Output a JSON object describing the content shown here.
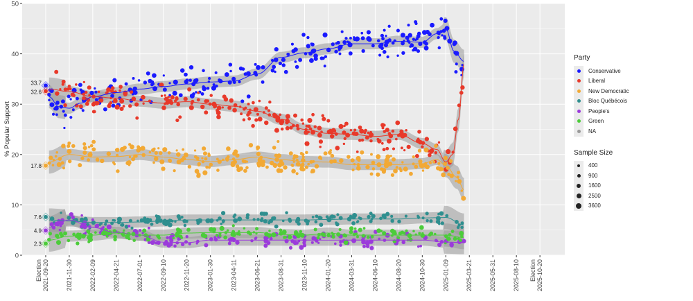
{
  "chart_data": {
    "type": "scatter",
    "title": "",
    "xlabel": "",
    "ylabel": "% Popular Support",
    "ylim": [
      0,
      50
    ],
    "yticks": [
      "0",
      "10",
      "20",
      "30",
      "40",
      "50"
    ],
    "x_unit": "days since 2021-09-20",
    "xlim_days": [
      -71,
      1566
    ],
    "xticks": [
      {
        "day": 0,
        "label": "Election\n2021-09-20"
      },
      {
        "day": 71,
        "label": "2021-11-30"
      },
      {
        "day": 142,
        "label": "2022-02-09"
      },
      {
        "day": 213,
        "label": "2022-04-21"
      },
      {
        "day": 284,
        "label": "2022-07-01"
      },
      {
        "day": 355,
        "label": "2022-09-10"
      },
      {
        "day": 426,
        "label": "2022-11-20"
      },
      {
        "day": 497,
        "label": "2023-01-30"
      },
      {
        "day": 568,
        "label": "2023-04-11"
      },
      {
        "day": 639,
        "label": "2023-06-21"
      },
      {
        "day": 710,
        "label": "2023-08-31"
      },
      {
        "day": 781,
        "label": "2023-11-10"
      },
      {
        "day": 852,
        "label": "2024-01-20"
      },
      {
        "day": 923,
        "label": "2024-03-31"
      },
      {
        "day": 994,
        "label": "2024-06-10"
      },
      {
        "day": 1065,
        "label": "2024-08-20"
      },
      {
        "day": 1136,
        "label": "2024-10-30"
      },
      {
        "day": 1207,
        "label": "2025-01-09"
      },
      {
        "day": 1278,
        "label": "2025-03-21"
      },
      {
        "day": 1349,
        "label": "2025-05-31"
      },
      {
        "day": 1420,
        "label": "2025-08-10"
      },
      {
        "day": 1491,
        "label": "Election\n2025-10-20"
      }
    ],
    "grid": true,
    "legend_position": "right",
    "legend_party_title": "Party",
    "legend_size_title": "Sample Size",
    "sample_sizes": [
      "400",
      "900",
      "1600",
      "2500",
      "3600"
    ],
    "series": [
      {
        "name": "Conservative",
        "color": "#1a1aff",
        "election_result": 33.7,
        "election_label": "33.7",
        "trend": [
          [
            10,
            31.5
          ],
          [
            40,
            29.5
          ],
          [
            71,
            29.2
          ],
          [
            105,
            30.2
          ],
          [
            142,
            31.5
          ],
          [
            213,
            32.3
          ],
          [
            284,
            33
          ],
          [
            355,
            33.5
          ],
          [
            426,
            34
          ],
          [
            497,
            34.4
          ],
          [
            568,
            34.6
          ],
          [
            639,
            36
          ],
          [
            710,
            39.3
          ],
          [
            781,
            40.2
          ],
          [
            852,
            41
          ],
          [
            923,
            42
          ],
          [
            994,
            42
          ],
          [
            1065,
            42.5
          ],
          [
            1136,
            42.3
          ],
          [
            1180,
            44
          ],
          [
            1207,
            45
          ],
          [
            1232,
            40.5
          ],
          [
            1262,
            38.5
          ]
        ]
      },
      {
        "name": "Liberal",
        "color": "#e8392a",
        "election_result": 32.6,
        "election_label": "32.6",
        "trend": [
          [
            10,
            33
          ],
          [
            71,
            32.5
          ],
          [
            142,
            31.5
          ],
          [
            213,
            31.2
          ],
          [
            284,
            30.6
          ],
          [
            355,
            30.2
          ],
          [
            426,
            30.5
          ],
          [
            497,
            30
          ],
          [
            568,
            29.6
          ],
          [
            639,
            28.6
          ],
          [
            710,
            27
          ],
          [
            781,
            25
          ],
          [
            852,
            24.2
          ],
          [
            923,
            24
          ],
          [
            994,
            23.6
          ],
          [
            1065,
            24
          ],
          [
            1136,
            22.2
          ],
          [
            1180,
            21
          ],
          [
            1207,
            18.5
          ],
          [
            1228,
            20
          ],
          [
            1245,
            27
          ],
          [
            1262,
            38
          ]
        ]
      },
      {
        "name": "New Democratic",
        "color": "#f2a935",
        "election_result": 17.8,
        "election_label": "17.8",
        "trend": [
          [
            10,
            18.5
          ],
          [
            71,
            20
          ],
          [
            142,
            19.5
          ],
          [
            213,
            19.6
          ],
          [
            284,
            20
          ],
          [
            355,
            19.5
          ],
          [
            426,
            19
          ],
          [
            497,
            18.6
          ],
          [
            568,
            19
          ],
          [
            639,
            19.5
          ],
          [
            710,
            19
          ],
          [
            781,
            18.6
          ],
          [
            852,
            18.5
          ],
          [
            923,
            18
          ],
          [
            994,
            18
          ],
          [
            1065,
            18
          ],
          [
            1136,
            18.2
          ],
          [
            1180,
            19
          ],
          [
            1207,
            17.8
          ],
          [
            1240,
            15.5
          ],
          [
            1262,
            13
          ]
        ]
      },
      {
        "name": "Bloc Québécois",
        "color": "#2f8f8f",
        "election_result": 7.6,
        "election_label": "7.6",
        "trend": [
          [
            10,
            7
          ],
          [
            71,
            6.8
          ],
          [
            142,
            6.5
          ],
          [
            213,
            6.5
          ],
          [
            284,
            6.6
          ],
          [
            355,
            6.8
          ],
          [
            426,
            7
          ],
          [
            497,
            7
          ],
          [
            568,
            7
          ],
          [
            639,
            7
          ],
          [
            710,
            7
          ],
          [
            781,
            7
          ],
          [
            852,
            7.1
          ],
          [
            923,
            7.2
          ],
          [
            994,
            7.2
          ],
          [
            1065,
            7.2
          ],
          [
            1136,
            7.4
          ],
          [
            1207,
            7.5
          ],
          [
            1262,
            6
          ]
        ]
      },
      {
        "name": "People's",
        "color": "#9b3bdb",
        "election_result": 4.9,
        "election_label": "4.9",
        "trend": [
          [
            10,
            5.5
          ],
          [
            71,
            7
          ],
          [
            142,
            5.5
          ],
          [
            213,
            4.5
          ],
          [
            284,
            4
          ],
          [
            355,
            2.6
          ],
          [
            426,
            2.5
          ],
          [
            497,
            3
          ],
          [
            568,
            3
          ],
          [
            639,
            3
          ],
          [
            710,
            3
          ],
          [
            781,
            3
          ],
          [
            852,
            3
          ],
          [
            923,
            3
          ],
          [
            994,
            3
          ],
          [
            1065,
            3
          ],
          [
            1136,
            3
          ],
          [
            1207,
            2.6
          ],
          [
            1262,
            2.5
          ]
        ]
      },
      {
        "name": "Green",
        "color": "#4ccc3a",
        "election_result": 2.3,
        "election_label": "2.3",
        "trend": [
          [
            10,
            3
          ],
          [
            71,
            3.8
          ],
          [
            142,
            4
          ],
          [
            213,
            4.4
          ],
          [
            284,
            4
          ],
          [
            355,
            4
          ],
          [
            426,
            4.4
          ],
          [
            497,
            4.5
          ],
          [
            568,
            4.5
          ],
          [
            639,
            4.5
          ],
          [
            710,
            4.1
          ],
          [
            781,
            4
          ],
          [
            852,
            4.4
          ],
          [
            923,
            4
          ],
          [
            994,
            4
          ],
          [
            1065,
            4
          ],
          [
            1136,
            4
          ],
          [
            1207,
            4
          ],
          [
            1262,
            3.5
          ]
        ]
      },
      {
        "name": "NA",
        "color": "#999999",
        "trend": []
      }
    ]
  }
}
